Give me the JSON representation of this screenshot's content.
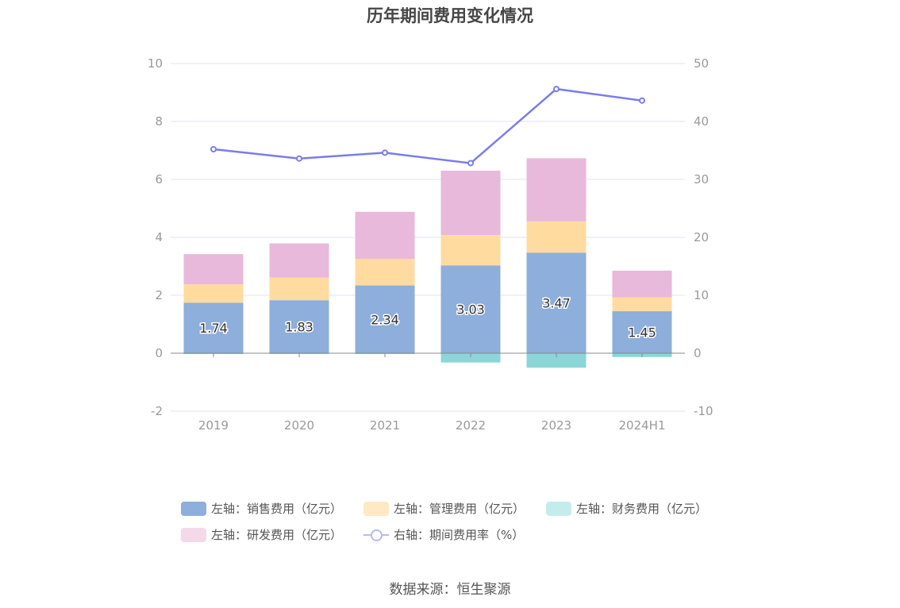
{
  "title": "历年期间费用变化情况",
  "source": "数据来源：恒生聚源",
  "chart_data": {
    "type": "bar",
    "stacked": true,
    "categories": [
      "2019",
      "2020",
      "2021",
      "2022",
      "2023",
      "2024H1"
    ],
    "left_axis": {
      "ticks": [
        "10",
        "8",
        "6",
        "4",
        "2",
        "0",
        "-2"
      ],
      "ylim": [
        -2,
        10
      ]
    },
    "right_axis": {
      "ticks": [
        "50",
        "40",
        "30",
        "20",
        "10",
        "0",
        "-10"
      ],
      "ylim": [
        -10,
        50
      ]
    },
    "series": [
      {
        "name": "左轴：销售费用（亿元）",
        "type": "bar",
        "axis": "left",
        "color": "#8eaedb",
        "values": [
          1.74,
          1.83,
          2.34,
          3.03,
          3.47,
          1.45
        ],
        "labels": [
          "1.74",
          "1.83",
          "2.34",
          "3.03",
          "3.47",
          "1.45"
        ]
      },
      {
        "name": "左轴：管理费用（亿元）",
        "type": "bar",
        "axis": "left",
        "color": "#ffdba0",
        "values": [
          0.64,
          0.78,
          0.92,
          1.05,
          1.08,
          0.48
        ]
      },
      {
        "name": "左轴：财务费用（亿元）",
        "type": "bar",
        "axis": "left",
        "color": "#8ad6d8",
        "values": [
          -0.02,
          -0.01,
          -0.02,
          -0.32,
          -0.5,
          -0.13
        ]
      },
      {
        "name": "左轴：研发费用（亿元）",
        "type": "bar",
        "axis": "left",
        "color": "#e8b9da",
        "values": [
          1.04,
          1.18,
          1.62,
          2.22,
          2.18,
          0.92
        ]
      },
      {
        "name": "右轴：期间费用率（%）",
        "type": "line",
        "axis": "right",
        "color": "#7b7cea",
        "values": [
          35.2,
          33.6,
          34.6,
          32.8,
          45.6,
          43.6
        ]
      }
    ],
    "legend_position": "bottom"
  },
  "legend": {
    "items": [
      {
        "label": "左轴：销售费用（亿元）",
        "color": "#8eaedb"
      },
      {
        "label": "左轴：管理费用（亿元）",
        "color": "#ffe8c4"
      },
      {
        "label": "左轴：财务费用（亿元）",
        "color": "#c5ecec"
      },
      {
        "label": "左轴：研发费用（亿元）",
        "color": "#f4d9ea"
      },
      {
        "label": "右轴：期间费用率（%）",
        "color": "#b9b8f2"
      }
    ]
  }
}
